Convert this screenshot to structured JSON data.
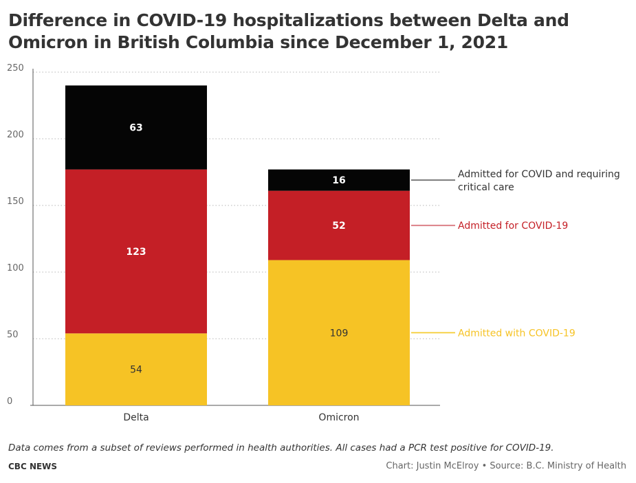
{
  "title": "Difference in COVID-19 hospitalizations between Delta and Omicron in British Columbia since December 1, 2021",
  "footnote": "Data comes from a subset of reviews performed in health authorities. All cases had a PCR test positive for COVID-19.",
  "brand": "CBC NEWS",
  "credit": "Chart: Justin McElroy • Source: B.C. Ministry of Health",
  "chart_data": {
    "type": "bar",
    "stacked": true,
    "title": "Difference in COVID-19 hospitalizations between Delta and Omicron in British Columbia since December 1, 2021",
    "categories": [
      "Delta",
      "Omicron"
    ],
    "series": [
      {
        "name": "Admitted with COVID-19",
        "values": [
          54,
          109
        ],
        "color": "#f6c325",
        "label_color": "#333333"
      },
      {
        "name": "Admitted for COVID-19",
        "values": [
          123,
          52
        ],
        "color": "#c41f26",
        "label_color": "#ffffff"
      },
      {
        "name": "Admitted for COVID and requiring critical care",
        "values": [
          63,
          16
        ],
        "color": "#050505",
        "label_color": "#ffffff"
      }
    ],
    "legend_colors": [
      "#f6d24a",
      "#dc8087",
      "#7a7a7a"
    ],
    "yticks": [
      0,
      50,
      100,
      150,
      200,
      250
    ],
    "ylim": [
      0,
      250
    ],
    "grid": true,
    "legend_placement": "right, inline labels",
    "xlabel": "",
    "ylabel": ""
  }
}
